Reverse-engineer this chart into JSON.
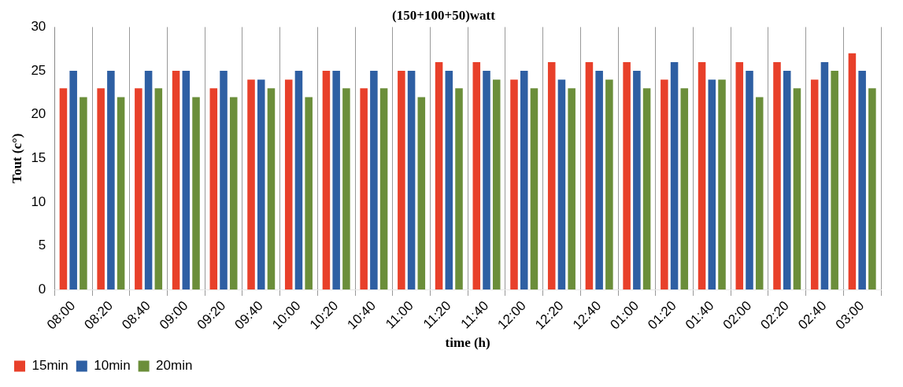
{
  "chart_data": {
    "type": "bar",
    "title": "(150+100+50)watt",
    "xlabel": "time (h)",
    "ylabel": "Tout (c°)",
    "categories": [
      "08:00",
      "08:20",
      "08:40",
      "09:00",
      "09:20",
      "09:40",
      "10:00",
      "10:20",
      "10:40",
      "11:00",
      "11:20",
      "11:40",
      "12:00",
      "12:20",
      "12:40",
      "01:00",
      "01:20",
      "01:40",
      "02:00",
      "02:20",
      "02:40",
      "03:00"
    ],
    "series": [
      {
        "name": "15min",
        "color": "#e8402a",
        "values": [
          23,
          23,
          23,
          25,
          23,
          24,
          24,
          25,
          23,
          25,
          26,
          26,
          24,
          26,
          26,
          26,
          24,
          26,
          26,
          26,
          24,
          27
        ]
      },
      {
        "name": "10min",
        "color": "#2e5fa3",
        "values": [
          25,
          25,
          25,
          25,
          25,
          24,
          25,
          25,
          25,
          25,
          25,
          25,
          25,
          24,
          25,
          25,
          26,
          24,
          25,
          25,
          26,
          25
        ]
      },
      {
        "name": "20min",
        "color": "#6b8e3a",
        "values": [
          22,
          22,
          23,
          22,
          22,
          23,
          22,
          23,
          23,
          22,
          23,
          24,
          23,
          23,
          24,
          23,
          23,
          24,
          22,
          23,
          25,
          23
        ]
      }
    ],
    "ylim": [
      0,
      30
    ],
    "yticks": [
      0,
      5,
      10,
      15,
      20,
      25,
      30
    ],
    "grid": "x",
    "legend": "bottom left"
  }
}
